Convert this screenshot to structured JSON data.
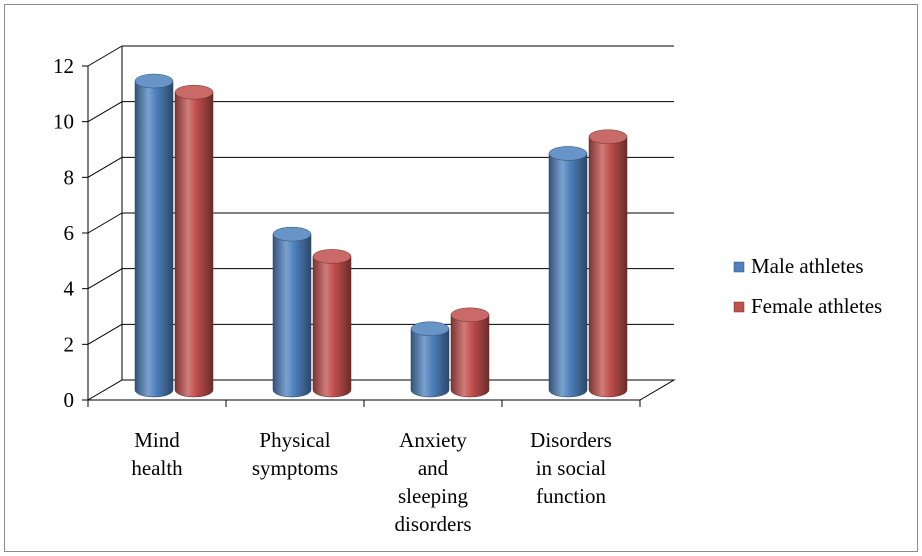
{
  "chart_data": {
    "type": "bar",
    "title": "",
    "xlabel": "",
    "ylabel": "",
    "ylim": [
      0,
      12
    ],
    "yticks": [
      0,
      2,
      4,
      6,
      8,
      10,
      12
    ],
    "grid": true,
    "legend_position": "right",
    "categories": [
      [
        "Mind",
        "health"
      ],
      [
        "Physical",
        "symptoms"
      ],
      [
        "Anxiety",
        "and",
        "sleeping",
        "disorders"
      ],
      [
        "Disorders",
        "in social",
        "function"
      ]
    ],
    "series": [
      {
        "name": "Male athletes",
        "color": "#4f81bd",
        "values": [
          11.1,
          5.6,
          2.2,
          8.5
        ]
      },
      {
        "name": "Female athletes",
        "color": "#c0504d",
        "values": [
          10.7,
          4.8,
          2.7,
          9.1
        ]
      }
    ]
  }
}
